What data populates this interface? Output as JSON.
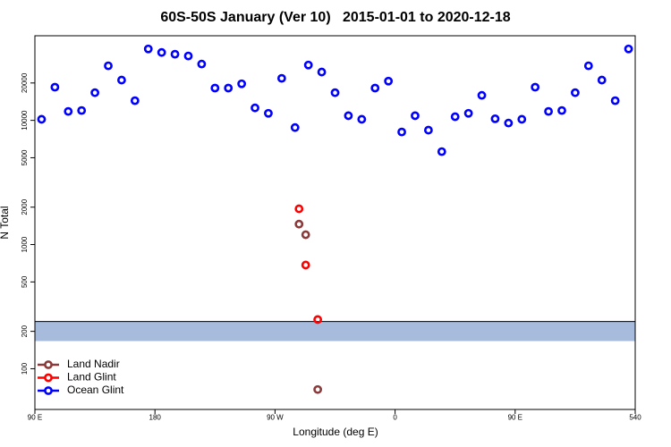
{
  "chart_data": {
    "type": "scatter",
    "title": "60S-50S January (Ver 10)   2015-01-01 to 2020-12-18",
    "x_label": "Longitude (deg E)",
    "y_label": "N Total",
    "log_y": true,
    "legend": "bottom-left",
    "xlim": [
      90,
      540
    ],
    "xticks": [
      {
        "value": 90,
        "label": "90 E"
      },
      180,
      {
        "value": 270,
        "label": "90 W"
      },
      {
        "value": 360,
        "label": "0"
      },
      {
        "value": 450,
        "label": "90 E"
      },
      540
    ],
    "ylim": [
      47,
      48000
    ],
    "yticks": [
      100,
      200,
      500,
      1000,
      2000,
      5000,
      10000,
      20000
    ],
    "band": {
      "range": [
        167,
        240
      ],
      "color": "#a7bcdc"
    },
    "series": [
      {
        "name": "Land Nadir",
        "color": "#8b3a3a",
        "x": [
          288,
          293,
          302
        ],
        "values": [
          1460,
          1200,
          68
        ]
      },
      {
        "name": "Land Glint",
        "color": "#ff0000",
        "x": [
          288,
          293,
          302
        ],
        "values": [
          1940,
          684,
          249
        ]
      },
      {
        "name": "Ocean Glint",
        "color": "#0000ff",
        "x": [
          95,
          105,
          115,
          125,
          135,
          145,
          155,
          165,
          175,
          185,
          195,
          205,
          215,
          225,
          235,
          245,
          255,
          265,
          275,
          285,
          295,
          305,
          315,
          325,
          335,
          345,
          355,
          365,
          375,
          385,
          395,
          405,
          415,
          425,
          435,
          445,
          455,
          465,
          475,
          485,
          495,
          505,
          515,
          525,
          535
        ],
        "values": [
          10200,
          18500,
          11800,
          12000,
          16700,
          27500,
          21100,
          14400,
          37600,
          35200,
          34100,
          33000,
          28400,
          18200,
          18200,
          19700,
          12600,
          11400,
          21800,
          8750,
          27900,
          24500,
          16700,
          10900,
          10200,
          18200,
          20700,
          8060,
          10900,
          8340,
          5600,
          10700,
          11400,
          15900,
          10300,
          9510,
          10200,
          18500,
          11800,
          12000,
          16700,
          27500,
          21100,
          14400,
          37600
        ]
      }
    ]
  }
}
